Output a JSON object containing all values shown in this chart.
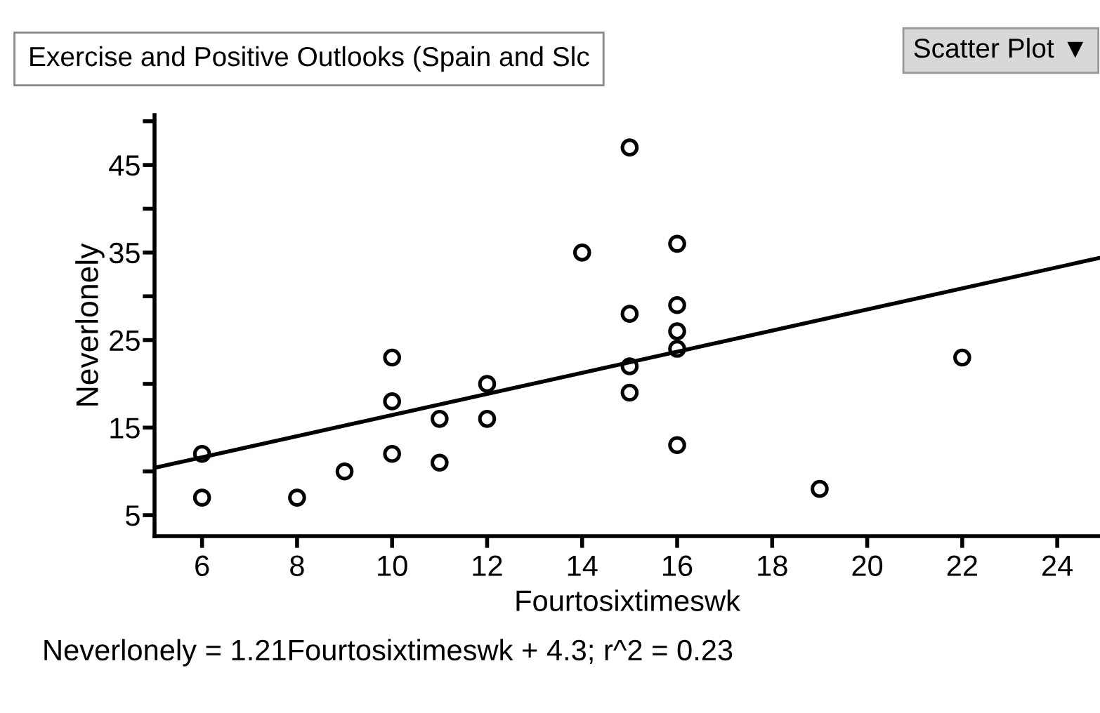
{
  "chart_data": {
    "type": "scatter",
    "title": "Exercise and Positive Outlooks (Spain and Slc",
    "xlabel": "Fourtosixtimeswk",
    "ylabel": "Neverlonely",
    "annotations": [
      "Scatter Plot ▼",
      "Neverlonely = 1.21Fourtosixtimeswk + 4.3; r^2 = 0.23"
    ],
    "series": [
      {
        "color": "#000000",
        "marker": "circle",
        "x": [
          6,
          6,
          8,
          9,
          10,
          10,
          10,
          11,
          11,
          12,
          12,
          14,
          15,
          15,
          15,
          15,
          16,
          16,
          16,
          16,
          16,
          19,
          22
        ],
        "values": [
          12,
          7,
          7,
          10,
          23,
          18,
          12,
          16,
          11,
          20,
          16,
          35,
          47,
          28,
          22,
          19,
          36,
          29,
          26,
          24,
          13,
          8,
          23
        ]
      },
      {
        "type": "line",
        "color": "#000000",
        "line_style": "solid",
        "x": [
          5,
          24.9
        ],
        "values": [
          10.4,
          34.4
        ]
      }
    ],
    "xlim": [
      5,
      24.9
    ],
    "ylim": [
      2.6,
      50.7
    ],
    "xticks": [
      6,
      8,
      10,
      12,
      14,
      16,
      18,
      20,
      22,
      24
    ],
    "yticks": [
      5,
      {
        "value": 10,
        "label": null
      },
      15,
      {
        "value": 20,
        "label": null
      },
      25,
      {
        "value": 30,
        "label": null
      },
      35,
      {
        "value": 40,
        "label": null
      },
      45,
      {
        "value": 50,
        "label": null
      }
    ],
    "grid": false,
    "legend": false
  }
}
